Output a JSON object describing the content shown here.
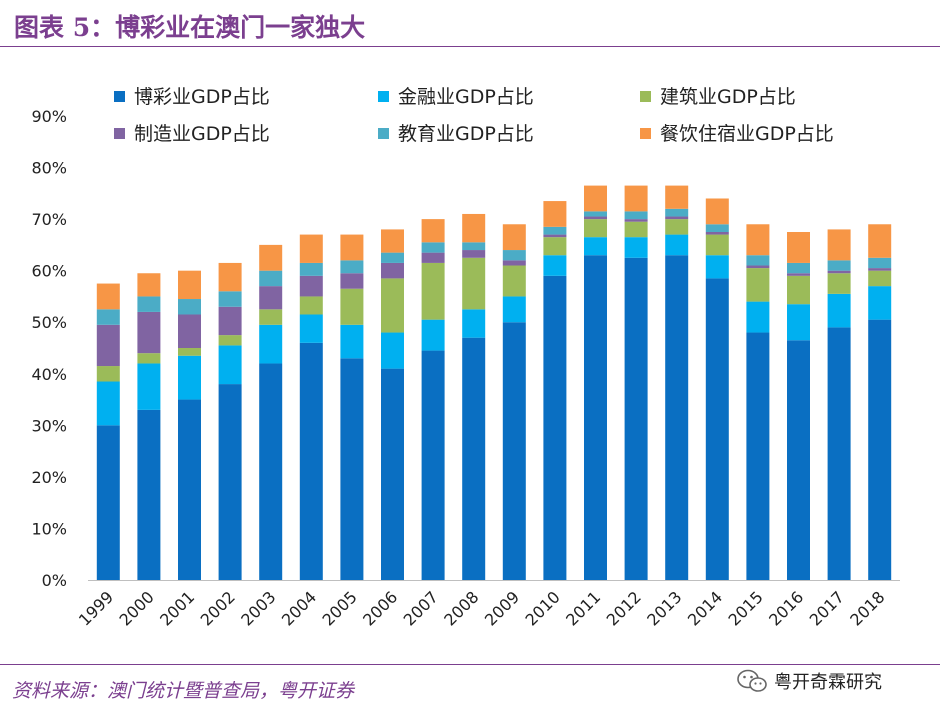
{
  "header": {
    "title": "图表 5：博彩业在澳门一家独大"
  },
  "footer": {
    "source": "资料来源：澳门统计暨普查局，粤开证券",
    "brand": "粤开奇霖研究",
    "brand_icon": "wechat-icon"
  },
  "colors": {
    "gaming": "#0a6fc2",
    "finance": "#00b0f0",
    "construction": "#9bbb59",
    "manufacturing": "#8064a2",
    "education": "#4bacc6",
    "catering": "#f79646",
    "title": "#7b3f8f"
  },
  "chart_data": {
    "type": "bar",
    "stacked": true,
    "title": "图表 5：博彩业在澳门一家独大",
    "xlabel": "",
    "ylabel": "",
    "ylim": [
      0,
      90
    ],
    "yticks": [
      "0%",
      "10%",
      "20%",
      "30%",
      "40%",
      "50%",
      "60%",
      "70%",
      "80%",
      "90%"
    ],
    "grid": false,
    "legend_position": "top",
    "categories": [
      "1999",
      "2000",
      "2001",
      "2002",
      "2003",
      "2004",
      "2005",
      "2006",
      "2007",
      "2008",
      "2009",
      "2010",
      "2011",
      "2012",
      "2013",
      "2014",
      "2015",
      "2016",
      "2017",
      "2018"
    ],
    "series": [
      {
        "key": "gaming",
        "name": "博彩业GDP占比",
        "values": [
          30,
          33,
          35,
          38,
          42,
          46,
          43,
          41,
          44.5,
          47,
          50,
          59,
          63,
          62.5,
          63,
          58.5,
          48,
          46.5,
          49,
          50.5
        ]
      },
      {
        "key": "finance",
        "name": "金融业GDP占比",
        "values": [
          8.5,
          9,
          8.5,
          7.5,
          7.5,
          5.5,
          6.5,
          7,
          6,
          5.5,
          5,
          4,
          3.5,
          4,
          4,
          4.5,
          6,
          7,
          6.5,
          6.5
        ]
      },
      {
        "key": "construction",
        "name": "建筑业GDP占比",
        "values": [
          3,
          2,
          1.5,
          2,
          3,
          3.5,
          7,
          10.5,
          11,
          10,
          6,
          3.5,
          3.5,
          3,
          3,
          4,
          6.5,
          5.5,
          4,
          3
        ]
      },
      {
        "key": "manufacturing",
        "name": "制造业GDP占比",
        "values": [
          8,
          8,
          6.5,
          5.5,
          4.5,
          4,
          3,
          3,
          2,
          1.5,
          1,
          0.5,
          0.5,
          0.5,
          0.5,
          0.5,
          0.5,
          0.5,
          0.5,
          0.5
        ]
      },
      {
        "key": "education",
        "name": "教育业GDP占比",
        "values": [
          3,
          3,
          3,
          3,
          3,
          2.5,
          2.5,
          2,
          2,
          1.5,
          2,
          1.5,
          1,
          1.5,
          1.5,
          1.5,
          2,
          2,
          2,
          2
        ]
      },
      {
        "key": "catering",
        "name": "餐饮住宿业GDP占比",
        "values": [
          5,
          4.5,
          5.5,
          5.5,
          5,
          5.5,
          5,
          4.5,
          4.5,
          5.5,
          5,
          5,
          5,
          5,
          4.5,
          5,
          6,
          6,
          6,
          6.5
        ]
      }
    ]
  }
}
